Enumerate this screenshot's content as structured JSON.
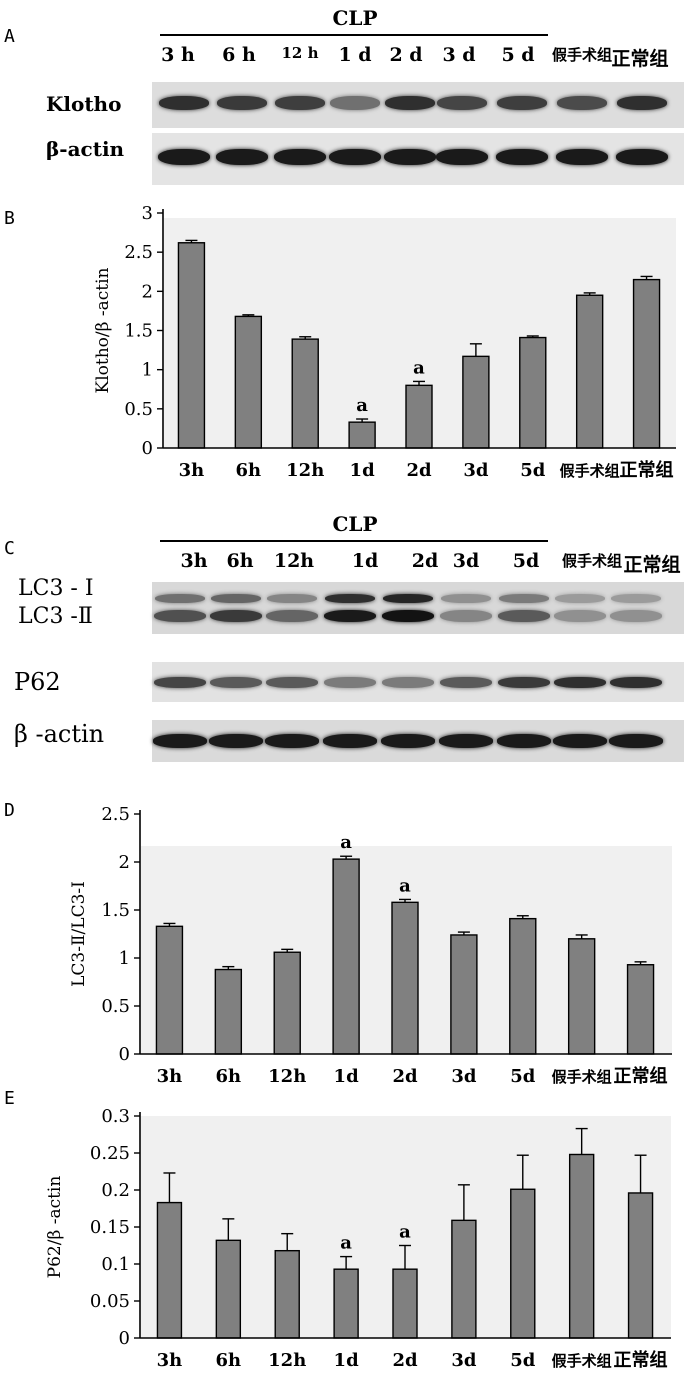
{
  "panels": {
    "A": {
      "letter": "A",
      "group_label": "CLP",
      "lanes": [
        "3 h",
        "6 h",
        "12 h",
        "1 d",
        "2 d",
        "3 d",
        "5 d",
        "假手术组",
        "正常组"
      ],
      "rows": [
        {
          "label": "Klotho",
          "intensity": [
            0.85,
            0.8,
            0.78,
            0.55,
            0.85,
            0.75,
            0.78,
            0.72,
            0.85
          ]
        },
        {
          "label": "β-actin",
          "intensity": [
            0.95,
            0.95,
            0.95,
            0.95,
            0.95,
            0.95,
            0.95,
            0.95,
            0.95
          ]
        }
      ]
    },
    "C": {
      "letter": "C",
      "group_label": "CLP",
      "lanes": [
        "3h",
        "6h",
        "12h",
        "1d",
        "2d",
        "3d",
        "5d",
        "假手术组",
        "正常组"
      ],
      "rows": [
        {
          "label": "LC3 - Ⅰ",
          "intensity": [
            0.55,
            0.6,
            0.45,
            0.85,
            0.9,
            0.4,
            0.5,
            0.35,
            0.35
          ]
        },
        {
          "label": "LC3 -Ⅱ",
          "intensity": [
            0.7,
            0.8,
            0.6,
            0.95,
            0.98,
            0.45,
            0.65,
            0.4,
            0.4
          ]
        },
        {
          "label": "P62",
          "intensity": [
            0.75,
            0.65,
            0.65,
            0.5,
            0.5,
            0.65,
            0.8,
            0.85,
            0.85
          ]
        },
        {
          "label": "β -actin",
          "intensity": [
            0.95,
            0.95,
            0.95,
            0.95,
            0.95,
            0.95,
            0.95,
            0.95,
            0.95
          ]
        }
      ]
    }
  },
  "chart_data": [
    {
      "type": "bar",
      "panel_letter": "B",
      "categories": [
        "3h",
        "6h",
        "12h",
        "1d",
        "2d",
        "3d",
        "5d",
        "假手术组",
        "正常组"
      ],
      "values": [
        2.62,
        1.68,
        1.39,
        0.33,
        0.8,
        1.17,
        1.41,
        1.95,
        2.15
      ],
      "errors": [
        0.03,
        0.02,
        0.03,
        0.04,
        0.05,
        0.16,
        0.02,
        0.03,
        0.04
      ],
      "annotations": [
        "",
        "",
        "",
        "a",
        "a",
        "",
        "",
        "",
        ""
      ],
      "ylabel": "Klotho/β -actin",
      "ylim": [
        0,
        3
      ],
      "yticks": [
        "0",
        "0.5",
        "1",
        "1.5",
        "2",
        "2.5",
        "3"
      ],
      "ytick_values": [
        0,
        0.5,
        1,
        1.5,
        2,
        2.5,
        3
      ]
    },
    {
      "type": "bar",
      "panel_letter": "D",
      "categories": [
        "3h",
        "6h",
        "12h",
        "1d",
        "2d",
        "3d",
        "5d",
        "假手术组",
        "正常组"
      ],
      "values": [
        1.33,
        0.88,
        1.06,
        2.03,
        1.58,
        1.24,
        1.41,
        1.2,
        0.93
      ],
      "errors": [
        0.03,
        0.03,
        0.03,
        0.03,
        0.03,
        0.03,
        0.03,
        0.04,
        0.03
      ],
      "annotations": [
        "",
        "",
        "",
        "a",
        "a",
        "",
        "",
        "",
        ""
      ],
      "ylabel": "LC3-Ⅱ/LC3-Ⅰ",
      "ylim": [
        0,
        2.5
      ],
      "yticks": [
        "0",
        "0.5",
        "1",
        "1.5",
        "2",
        "2.5"
      ],
      "ytick_values": [
        0,
        0.5,
        1,
        1.5,
        2,
        2.5
      ]
    },
    {
      "type": "bar",
      "panel_letter": "E",
      "categories": [
        "3h",
        "6h",
        "12h",
        "1d",
        "2d",
        "3d",
        "5d",
        "假手术组",
        "正常组"
      ],
      "values": [
        0.183,
        0.132,
        0.118,
        0.093,
        0.093,
        0.159,
        0.201,
        0.248,
        0.196
      ],
      "errors": [
        0.04,
        0.029,
        0.023,
        0.017,
        0.032,
        0.048,
        0.046,
        0.035,
        0.051
      ],
      "annotations": [
        "",
        "",
        "",
        "a",
        "a",
        "",
        "",
        "",
        ""
      ],
      "ylabel": "P62/β -actin",
      "ylim": [
        0,
        0.3
      ],
      "yticks": [
        "0",
        "0.05",
        "0.1",
        "0.15",
        "0.2",
        "0.25",
        "0.3"
      ],
      "ytick_values": [
        0,
        0.05,
        0.1,
        0.15,
        0.2,
        0.25,
        0.3
      ]
    }
  ]
}
